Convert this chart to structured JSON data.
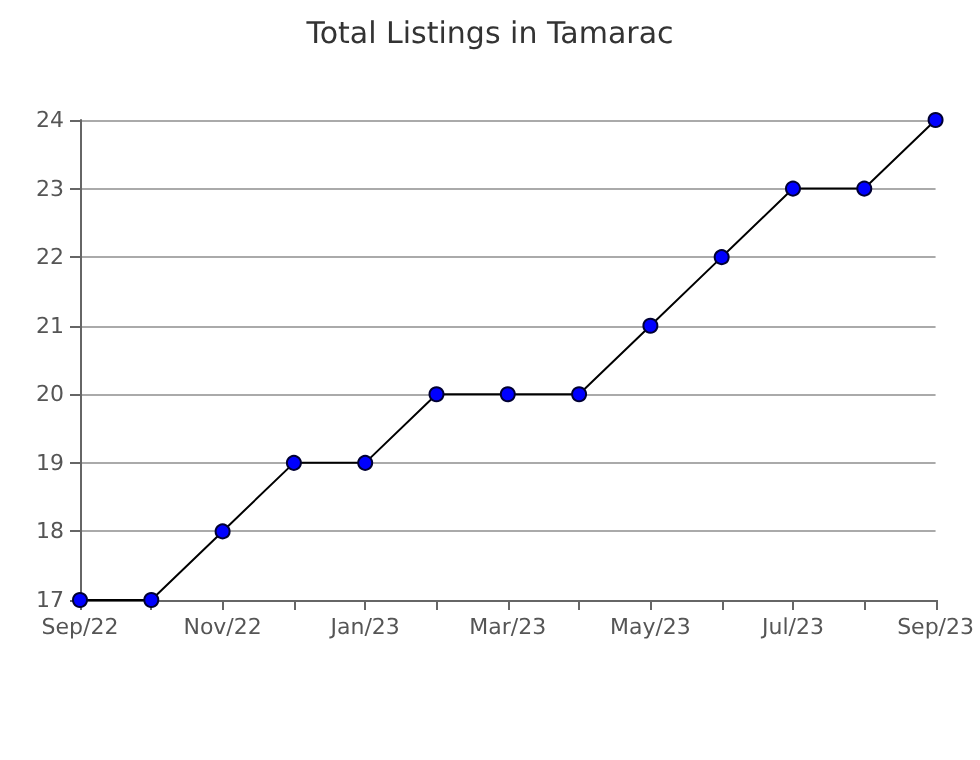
{
  "chart_data": {
    "type": "line",
    "title": "Total Listings in Tamarac",
    "categories": [
      "Sep/22",
      null,
      "Nov/22",
      null,
      "Jan/23",
      null,
      "Mar/23",
      null,
      "May/23",
      null,
      "Jul/23",
      null,
      "Sep/23"
    ],
    "series": [
      {
        "color": "#0000ff",
        "values": [
          17,
          17,
          18,
          19,
          19,
          20,
          20,
          20,
          21,
          22,
          23,
          23,
          24
        ]
      }
    ],
    "ylim": [
      17,
      24
    ],
    "yticks": [
      17,
      18,
      19,
      20,
      21,
      22,
      23,
      24
    ],
    "grid": "y",
    "marker": "circle",
    "line_style": "solid"
  }
}
